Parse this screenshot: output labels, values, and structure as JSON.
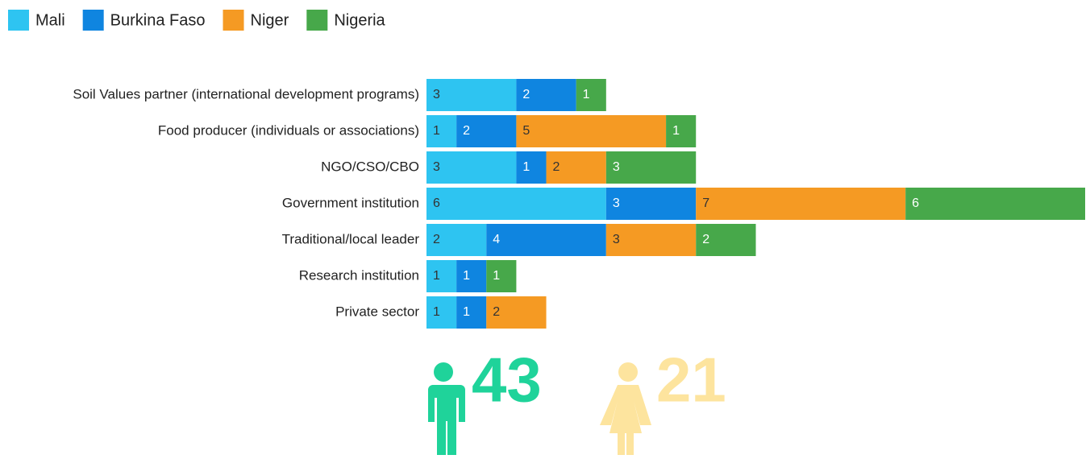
{
  "chart_data": {
    "type": "stacked-bar-horizontal",
    "categories": [
      "Soil Values partner (international development programs)",
      "Food producer (individuals or associations)",
      "NGO/CSO/CBO",
      "Government institution",
      "Traditional/local leader",
      "Research institution",
      "Private sector"
    ],
    "series": [
      {
        "name": "Mali",
        "color": "#2ec4f1",
        "label_color": "#333333",
        "values": [
          3,
          1,
          3,
          6,
          2,
          1,
          1
        ]
      },
      {
        "name": "Burkina Faso",
        "color": "#0f85e0",
        "label_color": "#ffffff",
        "values": [
          2,
          2,
          1,
          3,
          4,
          1,
          1
        ]
      },
      {
        "name": "Niger",
        "color": "#f59a23",
        "label_color": "#333333",
        "values": [
          null,
          5,
          2,
          7,
          3,
          null,
          2
        ]
      },
      {
        "name": "Nigeria",
        "color": "#47a84a",
        "label_color": "#ffffff",
        "values": [
          1,
          1,
          3,
          6,
          2,
          1,
          null
        ]
      }
    ],
    "legend": "top-left",
    "annotations": [
      {
        "text": "43",
        "color": "#1fd39a",
        "icon": "male"
      },
      {
        "text": "21",
        "color": "#fde49e",
        "icon": "female"
      }
    ]
  }
}
